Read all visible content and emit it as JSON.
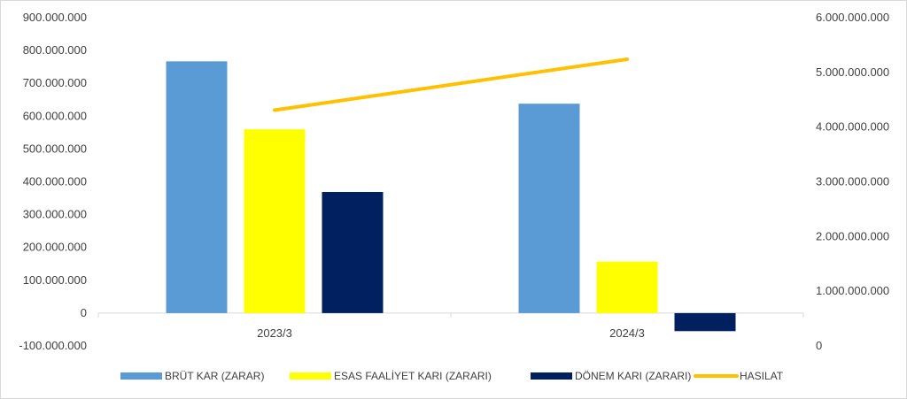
{
  "chart_data": {
    "type": "bar",
    "categories": [
      "2023/3",
      "2024/3"
    ],
    "series": [
      {
        "name": "BRÜT KAR (ZARAR)",
        "kind": "bar",
        "axis": "left",
        "color": "#5b9bd5",
        "values": [
          767000000,
          638000000
        ]
      },
      {
        "name": "ESAS FAALİYET KARI (ZARARI)",
        "kind": "bar",
        "axis": "left",
        "color": "#ffff00",
        "values": [
          560000000,
          157000000
        ]
      },
      {
        "name": "DÖNEM KARI (ZARARI)",
        "kind": "bar",
        "axis": "left",
        "color": "#002060",
        "values": [
          369000000,
          -55000000
        ]
      },
      {
        "name": "HASILAT",
        "kind": "line",
        "axis": "right",
        "color": "#ffc000",
        "values": [
          4310000000,
          5240000000
        ]
      }
    ],
    "y_left": {
      "ylim": [
        -100000000,
        900000000
      ],
      "ticks": [
        -100000000,
        0,
        100000000,
        200000000,
        300000000,
        400000000,
        500000000,
        600000000,
        700000000,
        800000000,
        900000000
      ],
      "tick_labels": [
        "-100.000.000",
        "0",
        "100.000.000",
        "200.000.000",
        "300.000.000",
        "400.000.000",
        "500.000.000",
        "600.000.000",
        "700.000.000",
        "800.000.000",
        "900.000.000"
      ]
    },
    "y_right": {
      "ylim": [
        0,
        6000000000
      ],
      "ticks": [
        0,
        1000000000,
        2000000000,
        3000000000,
        4000000000,
        5000000000,
        6000000000
      ],
      "tick_labels": [
        "0",
        "1.000.000.000",
        "2.000.000.000",
        "3.000.000.000",
        "4.000.000.000",
        "5.000.000.000",
        "6.000.000.000"
      ]
    },
    "grid": false,
    "legend_position": "bottom"
  }
}
